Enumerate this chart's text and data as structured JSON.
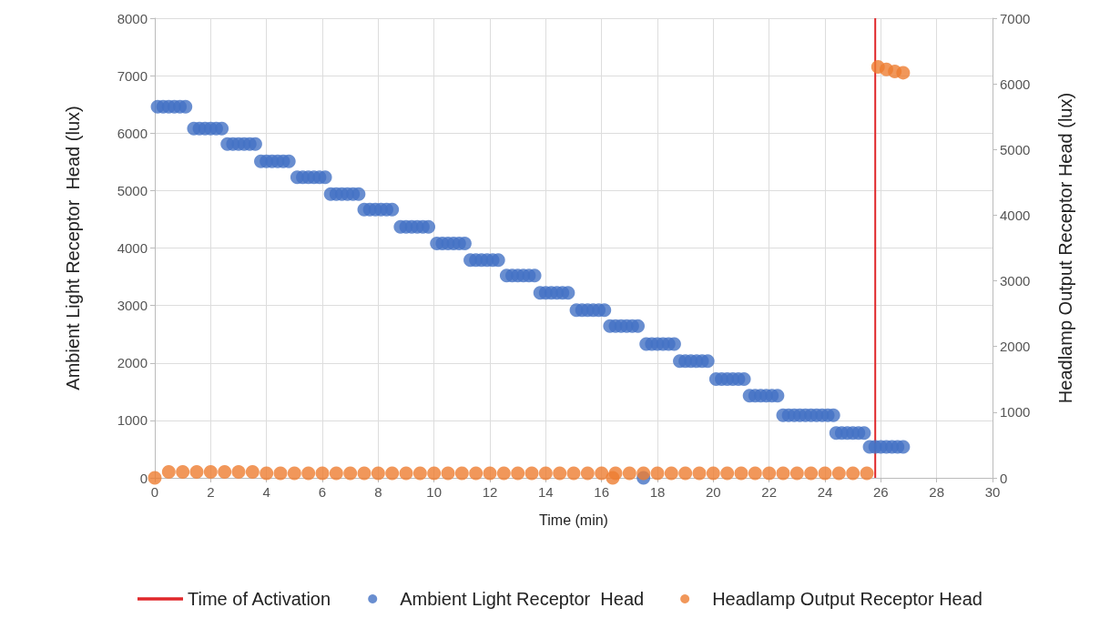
{
  "chart_data": {
    "type": "scatter",
    "xlabel": "Time (min)",
    "ylabel": "Ambient Light Receptor  Head (lux)",
    "y2label": "Headlamp Output Receptor Head (lux)",
    "xlim": [
      0,
      30
    ],
    "xticks": [
      0,
      2,
      4,
      6,
      8,
      10,
      12,
      14,
      16,
      18,
      20,
      22,
      24,
      26,
      28,
      30
    ],
    "ylim": [
      0,
      8000
    ],
    "yticks": [
      0,
      1000,
      2000,
      3000,
      4000,
      5000,
      6000,
      7000,
      8000
    ],
    "y2lim": [
      0,
      7000
    ],
    "y2ticks": [
      0,
      1000,
      2000,
      3000,
      4000,
      5000,
      6000,
      7000
    ],
    "grid": true,
    "legend": "bottom",
    "marker": "circle",
    "ref_lines": [
      {
        "axis": "x",
        "value": 25.8,
        "label": "Time of Activation",
        "color": "#e0282b",
        "line_style": "solid"
      }
    ],
    "series": [
      {
        "name": "Ambient Light Receptor  Head",
        "color": "#4472c4",
        "x": [
          0.1,
          0.3,
          0.5,
          0.7,
          0.9,
          1.1,
          1.4,
          1.6,
          1.8,
          2.0,
          2.2,
          2.4,
          2.6,
          2.8,
          3.0,
          3.2,
          3.4,
          3.6,
          3.8,
          4.0,
          4.2,
          4.4,
          4.6,
          4.8,
          5.1,
          5.3,
          5.5,
          5.7,
          5.9,
          6.1,
          6.3,
          6.5,
          6.7,
          6.9,
          7.1,
          7.3,
          7.5,
          7.7,
          7.9,
          8.1,
          8.3,
          8.5,
          8.8,
          9.0,
          9.2,
          9.4,
          9.6,
          9.8,
          10.1,
          10.3,
          10.5,
          10.7,
          10.9,
          11.1,
          11.3,
          11.5,
          11.7,
          11.9,
          12.1,
          12.3,
          12.6,
          12.8,
          13.0,
          13.2,
          13.4,
          13.6,
          13.8,
          14.0,
          14.2,
          14.4,
          14.6,
          14.8,
          15.1,
          15.3,
          15.5,
          15.7,
          15.9,
          16.1,
          16.3,
          16.5,
          16.7,
          16.9,
          17.1,
          17.3,
          17.5,
          17.6,
          17.8,
          18.0,
          18.2,
          18.4,
          18.6,
          18.8,
          19.0,
          19.2,
          19.4,
          19.6,
          19.8,
          20.1,
          20.3,
          20.5,
          20.7,
          20.9,
          21.1,
          21.3,
          21.5,
          21.7,
          21.9,
          22.1,
          22.3,
          22.5,
          22.7,
          22.9,
          23.1,
          23.3,
          23.5,
          23.7,
          23.9,
          24.1,
          24.3,
          24.4,
          24.6,
          24.8,
          25.0,
          25.2,
          25.4,
          25.6,
          25.8,
          26.0,
          26.2,
          26.4,
          26.6,
          26.8
        ],
        "values": [
          6460,
          6460,
          6460,
          6460,
          6460,
          6460,
          6080,
          6080,
          6080,
          6080,
          6080,
          6080,
          5810,
          5810,
          5810,
          5810,
          5810,
          5810,
          5510,
          5510,
          5510,
          5510,
          5510,
          5510,
          5230,
          5230,
          5230,
          5230,
          5230,
          5230,
          4940,
          4940,
          4940,
          4940,
          4940,
          4940,
          4670,
          4670,
          4670,
          4670,
          4670,
          4670,
          4370,
          4370,
          4370,
          4370,
          4370,
          4370,
          4080,
          4080,
          4080,
          4080,
          4080,
          4080,
          3790,
          3790,
          3790,
          3790,
          3790,
          3790,
          3520,
          3520,
          3520,
          3520,
          3520,
          3520,
          3220,
          3220,
          3220,
          3220,
          3220,
          3220,
          2920,
          2920,
          2920,
          2920,
          2920,
          2920,
          2640,
          2640,
          2640,
          2640,
          2640,
          2640,
          0,
          2330,
          2330,
          2330,
          2330,
          2330,
          2330,
          2030,
          2030,
          2030,
          2030,
          2030,
          2030,
          1720,
          1720,
          1720,
          1720,
          1720,
          1720,
          1430,
          1430,
          1430,
          1430,
          1430,
          1430,
          1090,
          1090,
          1090,
          1090,
          1090,
          1090,
          1090,
          1090,
          1090,
          1090,
          780,
          780,
          780,
          780,
          780,
          780,
          540,
          540,
          540,
          540,
          540,
          540,
          540
        ]
      },
      {
        "name": "Headlamp Output Receptor Head",
        "color": "#ed7d31",
        "axis": "y2",
        "x": [
          0,
          0.5,
          1,
          1.5,
          2,
          2.5,
          3,
          3.5,
          4,
          4.5,
          5,
          5.5,
          6,
          6.5,
          7,
          7.5,
          8,
          8.5,
          9,
          9.5,
          10,
          10.5,
          11,
          11.5,
          12,
          12.5,
          13,
          13.5,
          14,
          14.5,
          15,
          15.5,
          16,
          16.4,
          16.5,
          17,
          17.5,
          18,
          18.5,
          19,
          19.5,
          20,
          20.5,
          21,
          21.5,
          22,
          22.5,
          23,
          23.5,
          24,
          24.5,
          25,
          25.5,
          25.9,
          26.2,
          26.5,
          26.8
        ],
        "values": [
          0,
          90,
          90,
          90,
          90,
          90,
          90,
          90,
          70,
          70,
          70,
          70,
          70,
          70,
          70,
          70,
          70,
          70,
          70,
          70,
          70,
          70,
          70,
          70,
          70,
          70,
          70,
          70,
          70,
          70,
          70,
          70,
          70,
          0,
          70,
          70,
          70,
          70,
          70,
          70,
          70,
          70,
          70,
          70,
          70,
          70,
          70,
          70,
          70,
          70,
          70,
          70,
          70,
          6260,
          6220,
          6190,
          6170
        ]
      }
    ]
  }
}
